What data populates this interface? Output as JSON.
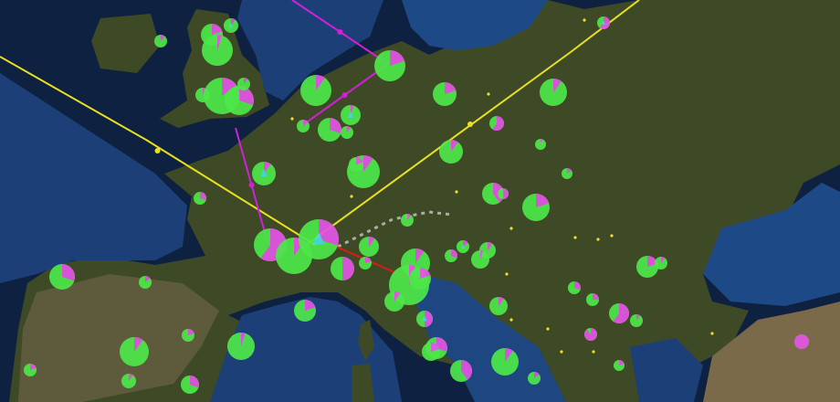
{
  "map": {
    "region": "Europe",
    "colors": {
      "sea": "#1d3f78",
      "deep_sea": "#0e2140",
      "land": "#3e4a26",
      "land_dry": "#6b6244",
      "mountains": "#d8d8d8",
      "marker_primary": "#4de84a",
      "marker_secondary": "#e455e6",
      "marker_tertiary": "#45e0e8",
      "route_yellow": "#e8e020",
      "route_magenta": "#d020d8",
      "route_red": "#e01818",
      "point_yellow": "#f0e030"
    },
    "markers_magenta_fraction": [
      0.1,
      0.2,
      0.05,
      0.1,
      0.15,
      0.3,
      0.1,
      0.05,
      0.2,
      0.1,
      0.15,
      0.3,
      0.05,
      0.1,
      0.2,
      0.1,
      0.6,
      0.1,
      0.05,
      0.1,
      0.2,
      0.1,
      0.3,
      0.15,
      0.4,
      0.5,
      0.2,
      0.1,
      0.6,
      0.1,
      0.3,
      0.5,
      0.1,
      0.2,
      0.1,
      0.05,
      0.2,
      0.1,
      0.3,
      0.15,
      0.1,
      0.05,
      0.2,
      0.1,
      0.3,
      0.25,
      0.1,
      0.2,
      0.5,
      0.6,
      0.1,
      0.3,
      0.15,
      0.9,
      0.1,
      0.2,
      0.05,
      0.3,
      0.2,
      0.1,
      0.4,
      0.15,
      1.0,
      0.2,
      0.1,
      0.3,
      0.6,
      0.2
    ]
  }
}
